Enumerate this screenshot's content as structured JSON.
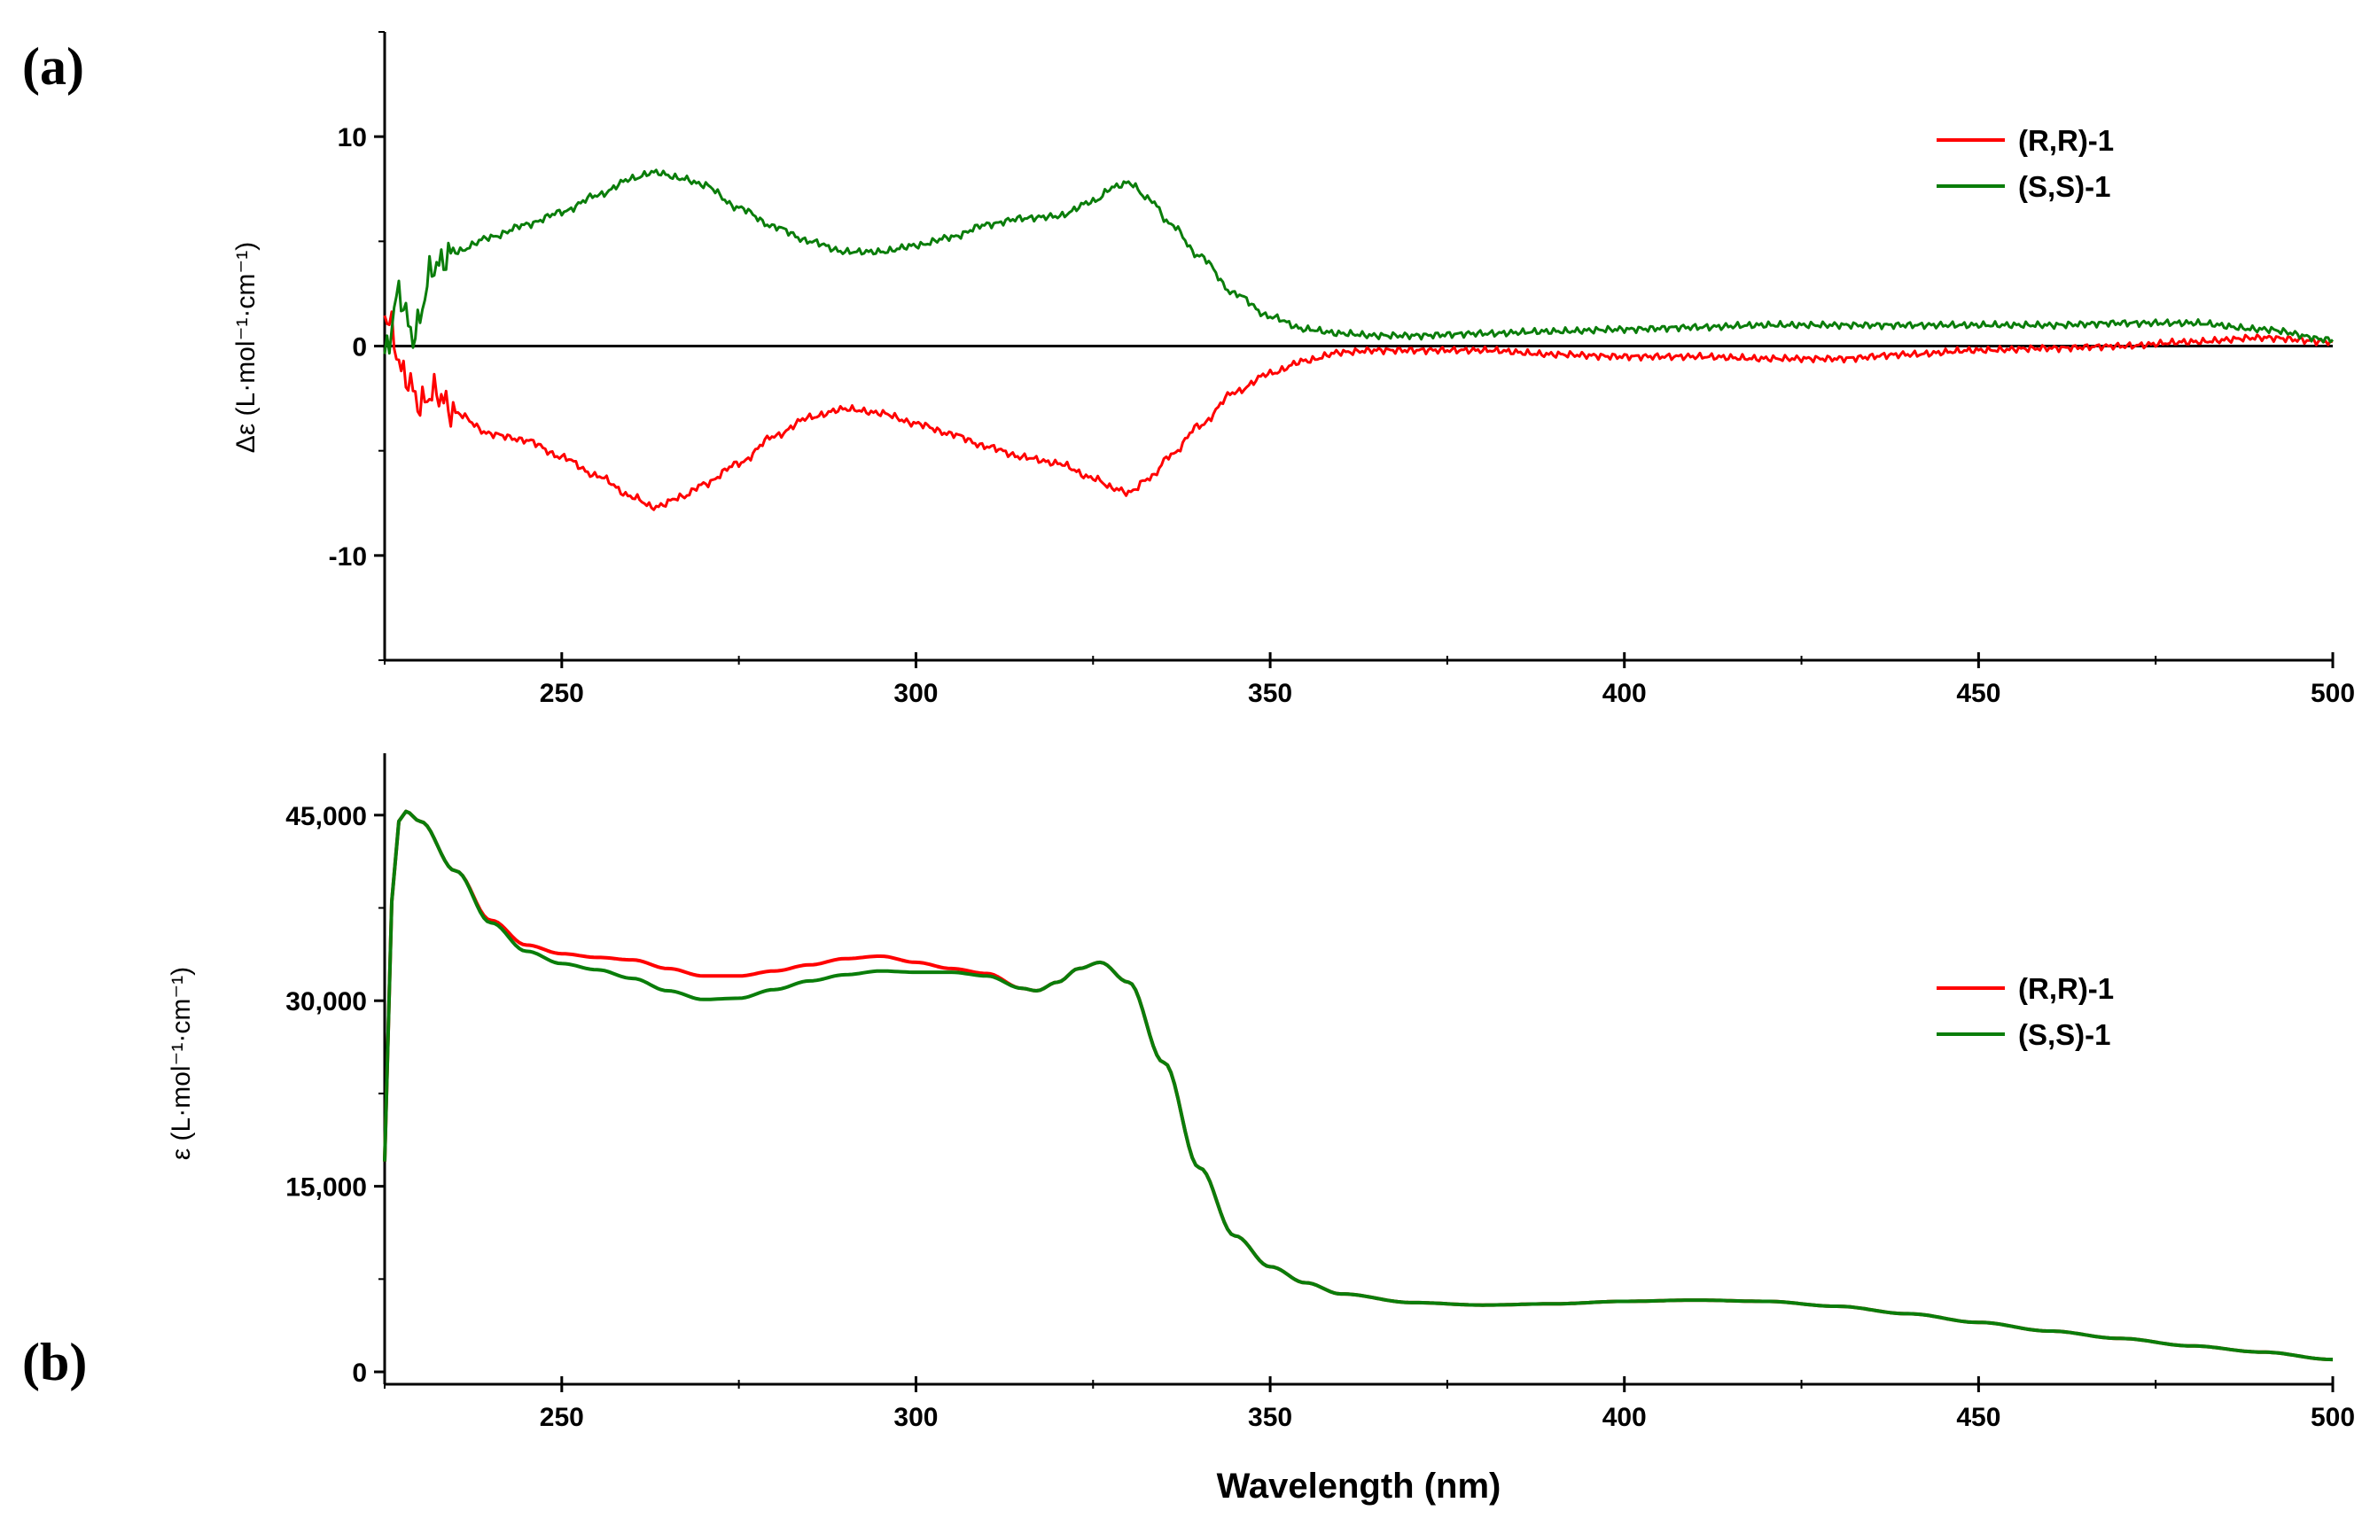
{
  "chart_data": [
    {
      "panel": "(a)",
      "type": "line",
      "xlabel": "",
      "ylabel": "Δε (L·mol⁻¹·cm⁻¹)",
      "xlim": [
        225,
        500
      ],
      "ylim": [
        -15,
        15
      ],
      "xticks": [
        250,
        300,
        350,
        400,
        450,
        500
      ],
      "xtick_labels": [
        "250",
        "300",
        "350",
        "400",
        "450",
        "500"
      ],
      "yticks": [
        -10,
        0,
        10
      ],
      "ytick_labels": [
        "-10",
        "0",
        "10"
      ],
      "zero_line": true,
      "legend": "top-right",
      "series": [
        {
          "name": "(R,R)-1",
          "color": "#ff0000",
          "x": [
            225,
            228,
            230,
            232,
            235,
            240,
            245,
            250,
            255,
            260,
            263,
            267,
            270,
            275,
            280,
            285,
            290,
            295,
            300,
            305,
            310,
            315,
            320,
            325,
            328,
            330,
            333,
            336,
            340,
            345,
            350,
            355,
            360,
            365,
            370,
            380,
            390,
            400,
            410,
            420,
            430,
            440,
            450,
            460,
            470,
            480,
            490,
            500
          ],
          "y": [
            1.5,
            -1.5,
            -2.8,
            -2.2,
            -3.2,
            -4.2,
            -4.5,
            -5.3,
            -6.2,
            -7.2,
            -7.7,
            -7.2,
            -6.6,
            -5.6,
            -4.3,
            -3.4,
            -3.0,
            -3.2,
            -3.7,
            -4.2,
            -4.8,
            -5.3,
            -5.6,
            -6.3,
            -6.8,
            -7.0,
            -6.3,
            -5.2,
            -3.8,
            -2.2,
            -1.3,
            -0.7,
            -0.3,
            -0.2,
            -0.2,
            -0.2,
            -0.4,
            -0.5,
            -0.5,
            -0.6,
            -0.6,
            -0.4,
            -0.2,
            -0.1,
            0.0,
            0.2,
            0.4,
            0.2
          ]
        },
        {
          "name": "(S,S)-1",
          "color": "#0a7d0a",
          "x": [
            225,
            227,
            229,
            232,
            235,
            240,
            245,
            250,
            255,
            260,
            263,
            267,
            270,
            275,
            280,
            285,
            290,
            295,
            300,
            305,
            310,
            315,
            320,
            325,
            328,
            330,
            333,
            336,
            340,
            345,
            350,
            355,
            360,
            365,
            370,
            380,
            390,
            400,
            410,
            420,
            430,
            440,
            450,
            460,
            470,
            480,
            490,
            500
          ],
          "y": [
            -0.5,
            2.5,
            0.5,
            3.8,
            4.5,
            5.2,
            5.8,
            6.4,
            7.2,
            8.0,
            8.3,
            8.0,
            7.7,
            6.6,
            5.7,
            5.0,
            4.5,
            4.5,
            4.8,
            5.2,
            5.8,
            6.1,
            6.2,
            6.9,
            7.6,
            7.8,
            7.0,
            5.8,
            4.3,
            2.5,
            1.4,
            0.8,
            0.6,
            0.5,
            0.5,
            0.6,
            0.7,
            0.8,
            0.9,
            1.0,
            1.0,
            1.0,
            1.0,
            1.0,
            1.1,
            1.1,
            0.8,
            0.3
          ]
        }
      ]
    },
    {
      "panel": "(b)",
      "type": "line",
      "xlabel": "Wavelength (nm)",
      "ylabel": "ε (L·mol⁻¹·cm⁻¹)",
      "xlim": [
        225,
        500
      ],
      "ylim": [
        -1000,
        50000
      ],
      "xticks": [
        250,
        300,
        350,
        400,
        450,
        500
      ],
      "xtick_labels": [
        "250",
        "300",
        "350",
        "400",
        "450",
        "500"
      ],
      "yticks": [
        0,
        15000,
        30000,
        45000
      ],
      "ytick_labels": [
        "0",
        "15,000",
        "30,000",
        "45,000"
      ],
      "legend": "right",
      "series": [
        {
          "name": "(R,R)-1",
          "color": "#ff0000",
          "x": [
            225,
            226,
            227,
            228,
            230,
            235,
            240,
            245,
            250,
            255,
            260,
            265,
            270,
            275,
            280,
            285,
            290,
            295,
            300,
            305,
            310,
            315,
            317,
            320,
            323,
            326,
            330,
            335,
            340,
            345,
            350,
            355,
            360,
            370,
            380,
            390,
            400,
            410,
            420,
            430,
            440,
            450,
            460,
            470,
            480,
            490,
            500
          ],
          "y": [
            17000,
            38000,
            44500,
            45300,
            44500,
            40500,
            36500,
            34500,
            33800,
            33500,
            33300,
            32600,
            32000,
            32000,
            32400,
            32900,
            33400,
            33600,
            33100,
            32600,
            32200,
            31000,
            30800,
            31500,
            32600,
            33100,
            31500,
            25000,
            16500,
            11000,
            8500,
            7200,
            6300,
            5600,
            5400,
            5500,
            5700,
            5800,
            5700,
            5300,
            4700,
            4000,
            3300,
            2700,
            2100,
            1600,
            1000
          ]
        },
        {
          "name": "(S,S)-1",
          "color": "#0a7d0a",
          "x": [
            225,
            226,
            227,
            228,
            230,
            235,
            240,
            245,
            250,
            255,
            260,
            265,
            270,
            275,
            280,
            285,
            290,
            295,
            300,
            305,
            310,
            315,
            317,
            320,
            323,
            326,
            330,
            335,
            340,
            345,
            350,
            355,
            360,
            370,
            380,
            390,
            400,
            410,
            420,
            430,
            440,
            450,
            460,
            470,
            480,
            490,
            500
          ],
          "y": [
            17000,
            38000,
            44500,
            45300,
            44500,
            40500,
            36300,
            34000,
            33000,
            32500,
            31800,
            30800,
            30100,
            30200,
            30900,
            31600,
            32100,
            32400,
            32300,
            32300,
            32000,
            31000,
            30800,
            31500,
            32600,
            33100,
            31500,
            25000,
            16500,
            11000,
            8500,
            7200,
            6300,
            5600,
            5400,
            5500,
            5700,
            5800,
            5700,
            5300,
            4700,
            4000,
            3300,
            2700,
            2100,
            1600,
            1000
          ]
        }
      ]
    }
  ]
}
